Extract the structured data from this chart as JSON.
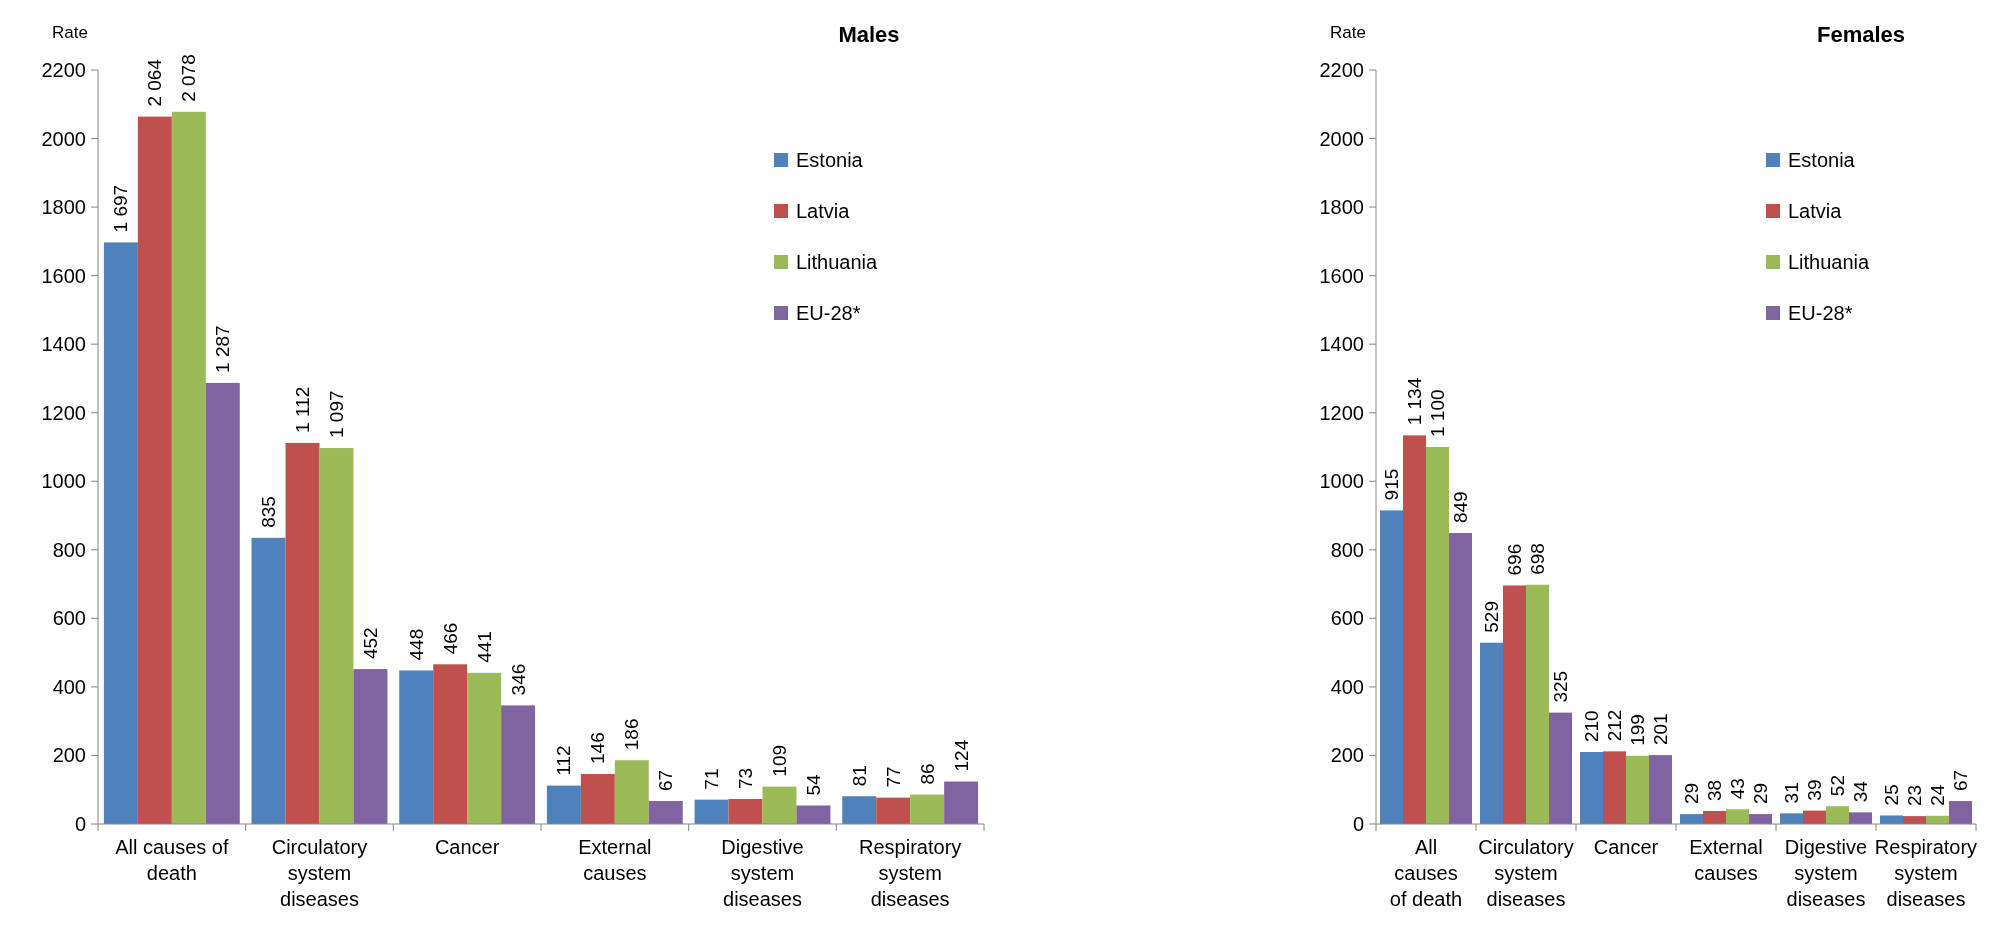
{
  "chart_data": [
    {
      "type": "bar",
      "title": "Males",
      "ylabel": "Rate",
      "categories": [
        "All causes of death",
        "Circulatory system diseases",
        "Cancer",
        "External causes",
        "Digestive system diseases",
        "Respiratory system diseases"
      ],
      "ylim": [
        0,
        2200
      ],
      "yticks": [
        0,
        200,
        400,
        600,
        800,
        1000,
        1200,
        1400,
        1600,
        1800,
        2000,
        2200
      ],
      "grid": false,
      "legend": "top right",
      "series": [
        {
          "name": "Estonia",
          "color": "#4f81bd",
          "values": [
            1697,
            835,
            448,
            112,
            71,
            81
          ],
          "value_labels": [
            "1 697",
            "835",
            "448",
            "112",
            "71",
            "81"
          ]
        },
        {
          "name": "Latvia",
          "color": "#c0504d",
          "values": [
            2064,
            1112,
            466,
            146,
            73,
            77
          ],
          "value_labels": [
            "2 064",
            "1 112",
            "466",
            "146",
            "73",
            "77"
          ]
        },
        {
          "name": "Lithuania",
          "color": "#9bbb59",
          "values": [
            2078,
            1097,
            441,
            186,
            109,
            86
          ],
          "value_labels": [
            "2 078",
            "1 097",
            "441",
            "186",
            "109",
            "86"
          ]
        },
        {
          "name": "EU-28*",
          "color": "#8064a2",
          "values": [
            1287,
            452,
            346,
            67,
            54,
            124
          ],
          "value_labels": [
            "1 287",
            "452",
            "346",
            "67",
            "54",
            "124"
          ]
        }
      ]
    },
    {
      "type": "bar",
      "title": "Females",
      "ylabel": "Rate",
      "categories": [
        "All causes of death",
        "Circulatory system diseases",
        "Cancer",
        "External causes",
        "Digestive system diseases",
        "Respiratory system diseases"
      ],
      "ylim": [
        0,
        2200
      ],
      "yticks": [
        0,
        200,
        400,
        600,
        800,
        1000,
        1200,
        1400,
        1600,
        1800,
        2000,
        2200
      ],
      "grid": false,
      "legend": "top right",
      "series": [
        {
          "name": "Estonia",
          "color": "#4f81bd",
          "values": [
            915,
            529,
            210,
            29,
            31,
            25
          ],
          "value_labels": [
            "915",
            "529",
            "210",
            "29",
            "31",
            "25"
          ]
        },
        {
          "name": "Latvia",
          "color": "#c0504d",
          "values": [
            1134,
            696,
            212,
            38,
            39,
            23
          ],
          "value_labels": [
            "1 134",
            "696",
            "212",
            "38",
            "39",
            "23"
          ]
        },
        {
          "name": "Lithuania",
          "color": "#9bbb59",
          "values": [
            1100,
            698,
            199,
            43,
            52,
            24
          ],
          "value_labels": [
            "1 100",
            "698",
            "199",
            "43",
            "52",
            "24"
          ]
        },
        {
          "name": "EU-28*",
          "color": "#8064a2",
          "values": [
            849,
            325,
            201,
            29,
            34,
            67
          ],
          "value_labels": [
            "849",
            "325",
            "201",
            "29",
            "34",
            "67"
          ]
        }
      ]
    }
  ]
}
